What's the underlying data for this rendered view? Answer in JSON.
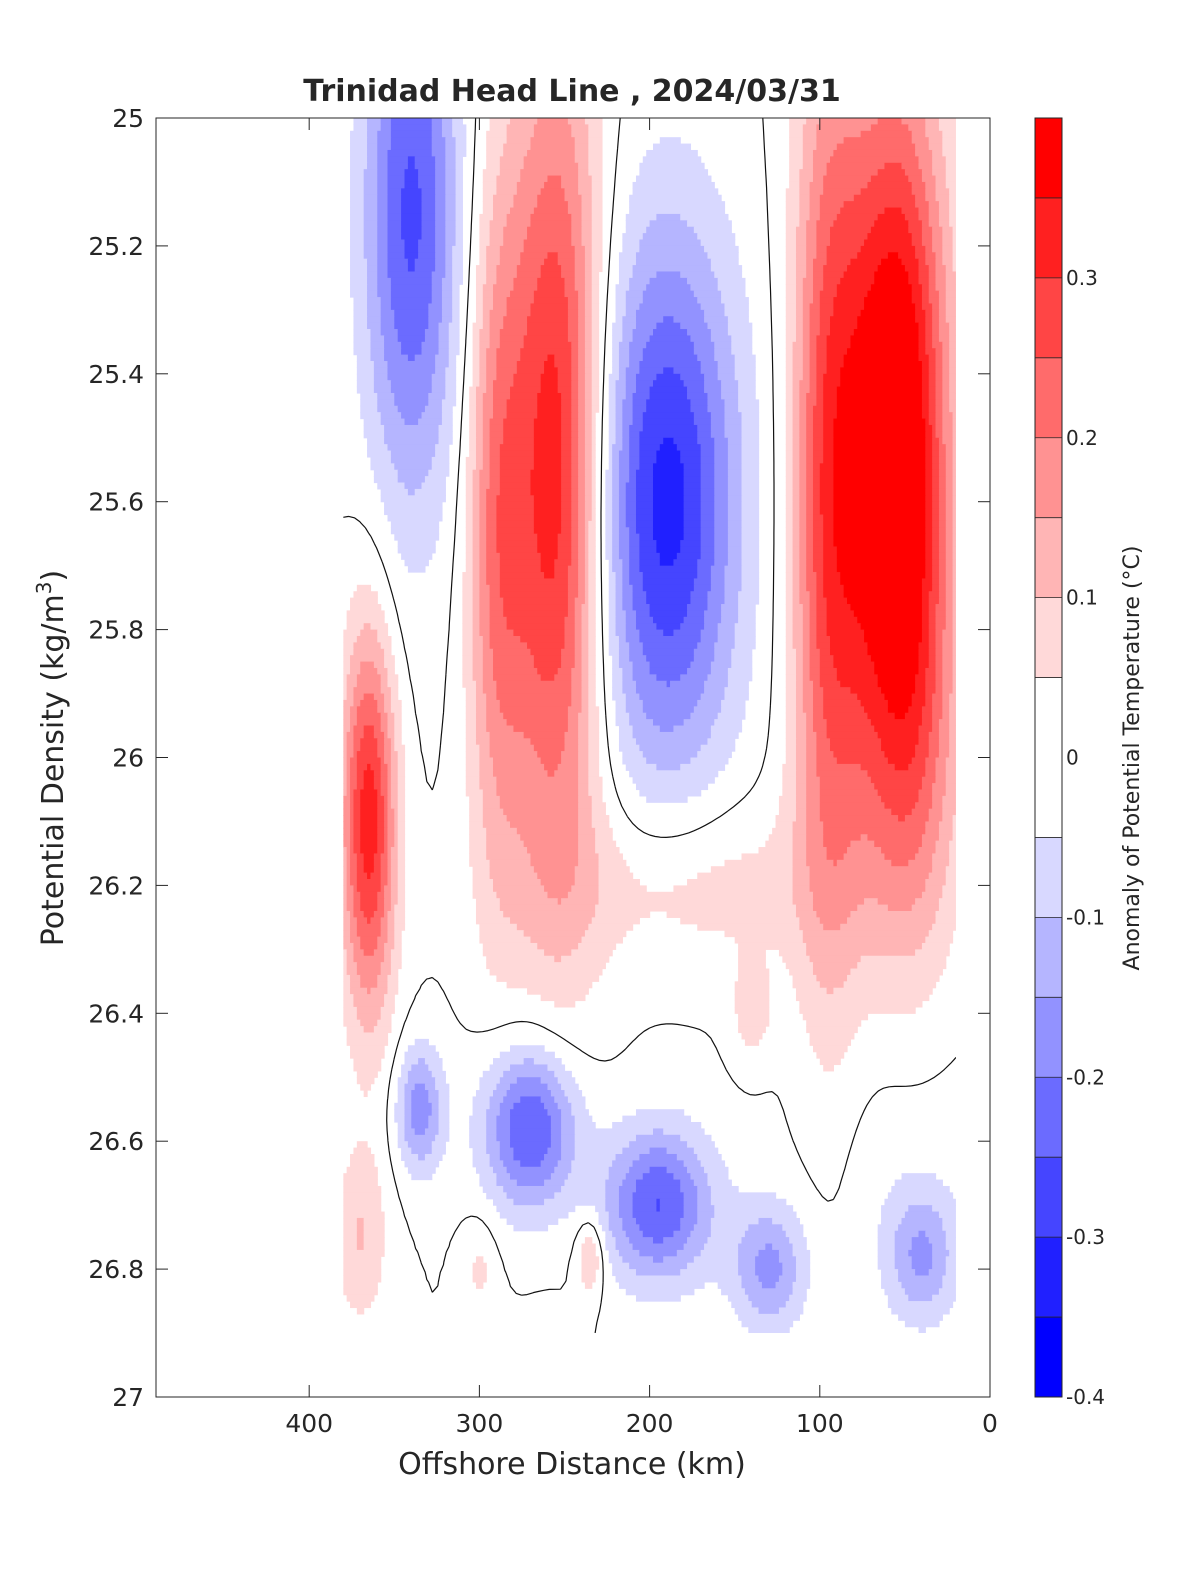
{
  "chart_data": {
    "type": "heatmap",
    "title": "Trinidad Head Line , 2024/03/31",
    "xlabel": "Offshore Distance (km)",
    "ylabel": "Potential Density (kg/m³)",
    "ylabel_base": "Potential Density (kg/m",
    "ylabel_sup": "3",
    "ylabel_close": ")",
    "xlim": [
      490,
      0
    ],
    "x_reversed": true,
    "ylim": [
      27,
      25
    ],
    "y_reversed": true,
    "x_ticks": [
      400,
      300,
      200,
      100,
      0
    ],
    "x_tick_labels": [
      "400",
      "300",
      "200",
      "100",
      "0"
    ],
    "y_ticks": [
      25,
      25.2,
      25.4,
      25.6,
      25.8,
      26,
      26.2,
      26.4,
      26.6,
      26.8,
      27
    ],
    "y_tick_labels": [
      "25",
      "25.2",
      "25.4",
      "25.6",
      "25.8",
      "26",
      "26.2",
      "26.4",
      "26.6",
      "26.8",
      "27"
    ],
    "colorbar": {
      "label": "Anomaly of Potential Temperature (°C)",
      "range": [
        -0.4,
        0.4
      ],
      "levels": [
        -0.4,
        -0.35,
        -0.3,
        -0.25,
        -0.2,
        -0.15,
        -0.1,
        -0.05,
        0.05,
        0.1,
        0.15,
        0.2,
        0.25,
        0.3,
        0.35,
        0.4
      ],
      "colors": [
        "#0000ff",
        "#2020ff",
        "#4545ff",
        "#6b6bff",
        "#9292ff",
        "#b5b5ff",
        "#d8d8ff",
        "#ffffff",
        "#ffd9d9",
        "#ffb5b5",
        "#ff9292",
        "#ff6b6b",
        "#ff4545",
        "#ff2020",
        "#ff0000"
      ],
      "tick_values": [
        -0.4,
        -0.3,
        -0.2,
        -0.1,
        0,
        0.1,
        0.2,
        0.3
      ],
      "tick_labels": [
        "-0.4",
        "-0.3",
        "-0.2",
        "-0.1",
        "0",
        "0.1",
        "0.2",
        "0.3"
      ]
    },
    "data_extent": {
      "x": [
        380,
        20
      ],
      "y": [
        25,
        26.9
      ]
    },
    "x": [
      380,
      360,
      340,
      320,
      300,
      280,
      260,
      240,
      220,
      200,
      180,
      160,
      140,
      120,
      100,
      80,
      60,
      40,
      20
    ],
    "y": [
      25.0,
      25.1,
      25.2,
      25.3,
      25.4,
      25.5,
      25.6,
      25.7,
      25.8,
      25.9,
      26.0,
      26.1,
      26.2,
      26.3,
      26.4,
      26.5,
      26.6,
      26.7,
      26.8,
      26.9
    ],
    "z_note": "anomaly field values (°C) sampled on the x/y grid",
    "contour_levels": [
      0
    ]
  }
}
